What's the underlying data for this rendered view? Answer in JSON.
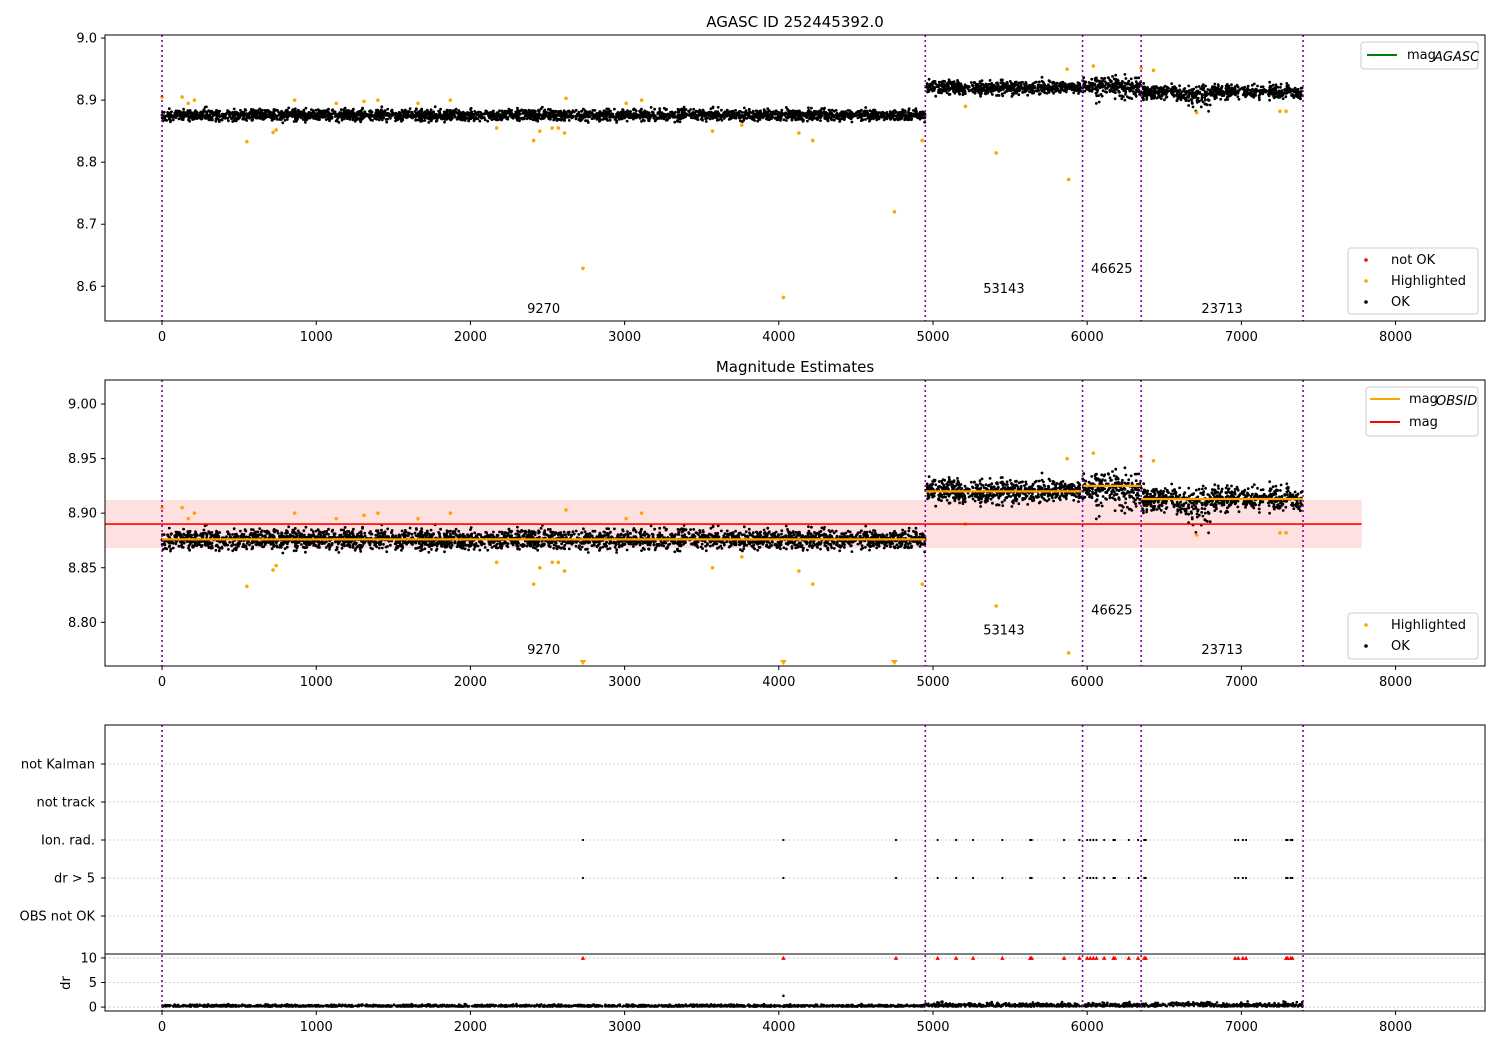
{
  "chart_data": [
    {
      "type": "scatter",
      "title": "AGASC ID 252445392.0",
      "xlim": [
        -370,
        8580
      ],
      "ylim": [
        8.544,
        9.005
      ],
      "x_ticks": [
        0,
        1000,
        2000,
        3000,
        4000,
        5000,
        6000,
        7000,
        8000
      ],
      "y_ticks": [
        8.6,
        8.7,
        8.8,
        8.9,
        9.0
      ],
      "y_tick_labels": [
        "8.6",
        "8.7",
        "8.8",
        "8.9",
        "9.0"
      ],
      "grid": false,
      "series": [
        {
          "name": "not OK",
          "color": "#ff0000",
          "points": []
        },
        {
          "name": "Highlighted",
          "color": "#ffa500",
          "points": [
            [
              0,
              8.905
            ],
            [
              130,
              8.905
            ],
            [
              170,
              8.895
            ],
            [
              210,
              8.9
            ],
            [
              550,
              8.833
            ],
            [
              720,
              8.848
            ],
            [
              740,
              8.852
            ],
            [
              860,
              8.9
            ],
            [
              1130,
              8.895
            ],
            [
              1310,
              8.898
            ],
            [
              1400,
              8.9
            ],
            [
              1660,
              8.895
            ],
            [
              1870,
              8.9
            ],
            [
              2170,
              8.855
            ],
            [
              2410,
              8.835
            ],
            [
              2450,
              8.85
            ],
            [
              2530,
              8.855
            ],
            [
              2570,
              8.855
            ],
            [
              2610,
              8.847
            ],
            [
              2620,
              8.903
            ],
            [
              2730,
              8.629
            ],
            [
              3010,
              8.895
            ],
            [
              3110,
              8.9
            ],
            [
              3570,
              8.85
            ],
            [
              3760,
              8.86
            ],
            [
              4030,
              8.582
            ],
            [
              4130,
              8.847
            ],
            [
              4220,
              8.835
            ],
            [
              4750,
              8.72
            ],
            [
              4930,
              8.835
            ],
            [
              5210,
              8.89
            ],
            [
              5410,
              8.815
            ],
            [
              5870,
              8.95
            ],
            [
              5880,
              8.772
            ],
            [
              6040,
              8.955
            ],
            [
              6350,
              8.952
            ],
            [
              6430,
              8.948
            ],
            [
              6710,
              8.88
            ],
            [
              7250,
              8.882
            ],
            [
              7290,
              8.882
            ]
          ]
        },
        {
          "name": "OK",
          "color": "#000000",
          "segments": [
            {
              "x0": 0,
              "x1": 4950,
              "base": 8.876,
              "spread": 0.009
            },
            {
              "x0": 4950,
              "x1": 5970,
              "base": 8.92,
              "spread": 0.011
            },
            {
              "x0": 5970,
              "x1": 6350,
              "base": 8.925,
              "spread": 0.013
            },
            {
              "x0": 6350,
              "x1": 7400,
              "base": 8.913,
              "spread": 0.011
            }
          ]
        }
      ],
      "legend_upper": [
        {
          "label": "mag",
          "sub": "AGASC",
          "color": "#008000"
        }
      ],
      "legend_lower": [
        {
          "label": "not OK",
          "color": "#ff0000"
        },
        {
          "label": "Highlighted",
          "color": "#ffa500"
        },
        {
          "label": "OK",
          "color": "#000000"
        }
      ],
      "obsid_boundaries": [
        0,
        4950,
        5970,
        6350,
        7400
      ],
      "annotations": [
        {
          "text": "9270",
          "x": 2475,
          "y": 8.557
        },
        {
          "text": "53143",
          "x": 5460,
          "y": 8.589
        },
        {
          "text": "46625",
          "x": 6160,
          "y": 8.621
        },
        {
          "text": "23713",
          "x": 6875,
          "y": 8.557
        }
      ]
    },
    {
      "type": "scatter",
      "title": "Magnitude Estimates",
      "xlim": [
        -370,
        8580
      ],
      "ylim": [
        8.76,
        9.022
      ],
      "x_ticks": [
        0,
        1000,
        2000,
        3000,
        4000,
        5000,
        6000,
        7000,
        8000
      ],
      "y_ticks": [
        8.8,
        8.85,
        8.9,
        8.95,
        9.0
      ],
      "y_tick_labels": [
        "8.80",
        "8.85",
        "8.90",
        "8.95",
        "9.00"
      ],
      "grid": false,
      "mag": 8.89,
      "mag_band": [
        8.868,
        8.912
      ],
      "mag_line_x": [
        -370,
        7780
      ],
      "mag_obsid": [
        {
          "x0": 0,
          "x1": 4950,
          "y": 8.876
        },
        {
          "x0": 4950,
          "x1": 5970,
          "y": 8.92
        },
        {
          "x0": 5970,
          "x1": 6350,
          "y": 8.925
        },
        {
          "x0": 6350,
          "x1": 7400,
          "y": 8.913
        }
      ],
      "clipped_markers": [
        2730,
        4030,
        4750
      ],
      "legend_upper": [
        {
          "label": "mag",
          "sub": "OBSID",
          "color": "#ffa500"
        },
        {
          "label": "mag",
          "sub": "",
          "color": "#ff0000"
        }
      ],
      "legend_lower": [
        {
          "label": "Highlighted",
          "color": "#ffa500"
        },
        {
          "label": "OK",
          "color": "#000000"
        }
      ],
      "obsid_boundaries": [
        0,
        4950,
        5970,
        6350,
        7400
      ],
      "annotations": [
        {
          "text": "9270",
          "x": 2475,
          "y": 8.771
        },
        {
          "text": "53143",
          "x": 5460,
          "y": 8.789
        },
        {
          "text": "46625",
          "x": 6160,
          "y": 8.807
        },
        {
          "text": "23713",
          "x": 6875,
          "y": 8.771
        }
      ]
    },
    {
      "type": "scatter",
      "title": "",
      "xlim": [
        -370,
        8580
      ],
      "categories": [
        "not Kalman",
        "not track",
        "Ion. rad.",
        "dr > 5",
        "OBS not OK"
      ],
      "flag_events": [
        2730,
        4030,
        4760,
        5030,
        5150,
        5260,
        5450,
        5630,
        5640,
        5850,
        5950,
        6000,
        6020,
        6040,
        6060,
        6110,
        6170,
        6180,
        6270,
        6330,
        6370,
        6380,
        6960,
        6980,
        7010,
        7030,
        7290,
        7300,
        7320,
        7330
      ],
      "flag_rows": [
        "Ion. rad.",
        "dr > 5"
      ],
      "dr_ylim": [
        -0.8,
        10.8
      ],
      "dr_y_ticks": [
        0,
        5,
        10
      ],
      "dr_y_tick_labels": [
        "0",
        "5",
        "10"
      ],
      "dr_ylabel": "dr",
      "dr_outlier": [
        4030,
        2.3
      ],
      "dr_clipped_value": 10,
      "x_ticks": [
        0,
        1000,
        2000,
        3000,
        4000,
        5000,
        6000,
        7000,
        8000
      ],
      "obsid_boundaries": [
        0,
        4950,
        5970,
        6350,
        7400
      ]
    }
  ]
}
